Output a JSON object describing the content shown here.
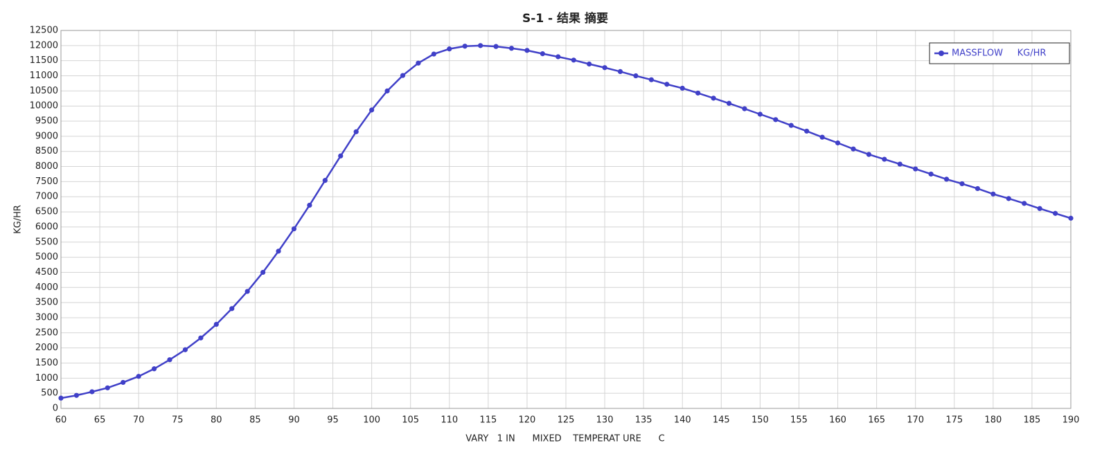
{
  "chart_data": {
    "type": "line",
    "title": "S-1 - 结果 摘要",
    "x_label": "VARY   1 IN      MIXED    TEMPERAT URE      C",
    "y_label": "KG/HR",
    "x": [
      60,
      62,
      64,
      66,
      68,
      70,
      72,
      74,
      76,
      78,
      80,
      82,
      84,
      86,
      88,
      90,
      92,
      94,
      96,
      98,
      100,
      102,
      104,
      106,
      108,
      110,
      112,
      114,
      116,
      118,
      120,
      122,
      124,
      126,
      128,
      130,
      132,
      134,
      136,
      138,
      140,
      142,
      144,
      146,
      148,
      150,
      152,
      154,
      156,
      158,
      160,
      162,
      164,
      166,
      168,
      170,
      172,
      174,
      176,
      178,
      180,
      182,
      184,
      186,
      188,
      190
    ],
    "series": [
      {
        "name": "MASSFLOW     KG/HR",
        "color": "#4040c8",
        "values": [
          340,
          430,
          550,
          680,
          860,
          1060,
          1310,
          1610,
          1940,
          2330,
          2780,
          3300,
          3870,
          4500,
          5200,
          5940,
          6720,
          7540,
          8350,
          9150,
          9870,
          10500,
          11010,
          11420,
          11720,
          11890,
          11980,
          12000,
          11970,
          11910,
          11840,
          11730,
          11630,
          11520,
          11390,
          11270,
          11140,
          11000,
          10870,
          10720,
          10590,
          10430,
          10260,
          10090,
          9910,
          9730,
          9550,
          9360,
          9170,
          8970,
          8780,
          8580,
          8400,
          8240,
          8080,
          7920,
          7750,
          7580,
          7430,
          7270,
          7090,
          6940,
          6780,
          6610,
          6450,
          6290
        ]
      }
    ],
    "xlim": [
      60,
      190
    ],
    "xticks": [
      60,
      65,
      70,
      75,
      80,
      85,
      90,
      95,
      100,
      105,
      110,
      115,
      120,
      125,
      130,
      135,
      140,
      145,
      150,
      155,
      160,
      165,
      170,
      175,
      180,
      185,
      190
    ],
    "ylim": [
      0,
      12500
    ],
    "yticks": [
      0,
      500,
      1000,
      1500,
      2000,
      2500,
      3000,
      3500,
      4000,
      4500,
      5000,
      5500,
      6000,
      6500,
      7000,
      7500,
      8000,
      8500,
      9000,
      9500,
      10000,
      10500,
      11000,
      11500,
      12000,
      12500
    ],
    "grid": true,
    "legend": "top-right"
  }
}
